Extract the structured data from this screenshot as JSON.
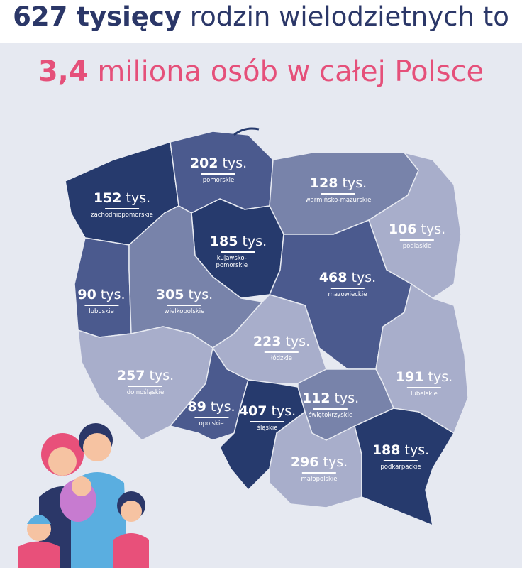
{
  "title": {
    "bold": "627 tysięcy",
    "rest": "rodzin wielodzietnych to"
  },
  "subtitle": {
    "bold": "3,4",
    "rest": "miliona osób w całej Polsce"
  },
  "unit": "tys.",
  "regions": [
    {
      "name": "zachodniopomorskie",
      "value": 152
    },
    {
      "name": "pomorskie",
      "value": 202
    },
    {
      "name": "warmińsko-mazurskie",
      "value": 128
    },
    {
      "name": "podlaskie",
      "value": 106
    },
    {
      "name": "kujawsko-pomorskie",
      "value": 185
    },
    {
      "name": "mazowieckie",
      "value": 468
    },
    {
      "name": "lubuskie",
      "value": 90
    },
    {
      "name": "wielkopolskie",
      "value": 305
    },
    {
      "name": "łódzkie",
      "value": 223
    },
    {
      "name": "dolnośląskie",
      "value": 257
    },
    {
      "name": "opolskie",
      "value": 89
    },
    {
      "name": "śląskie",
      "value": 407
    },
    {
      "name": "świętokrzyskie",
      "value": 112
    },
    {
      "name": "lubelskie",
      "value": 191
    },
    {
      "name": "małopolskie",
      "value": 296
    },
    {
      "name": "podkarpackie",
      "value": 188
    }
  ]
}
